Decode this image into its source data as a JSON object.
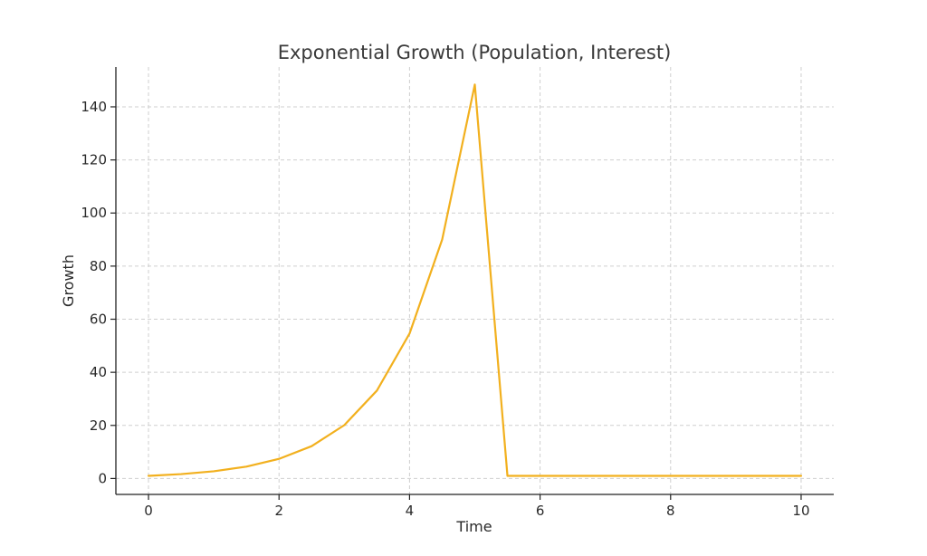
{
  "chart_data": {
    "type": "line",
    "title": "Exponential Growth (Population, Interest)",
    "xlabel": "Time",
    "ylabel": "Growth",
    "xlim": [
      -0.5,
      10.5
    ],
    "ylim": [
      -6,
      155
    ],
    "xticks": [
      0,
      2,
      4,
      6,
      8,
      10
    ],
    "yticks": [
      0,
      20,
      40,
      60,
      80,
      100,
      120,
      140
    ],
    "grid": true,
    "series": [
      {
        "color": "#f2b01e",
        "x": [
          0,
          0.5,
          1,
          1.5,
          2,
          2.5,
          3,
          3.5,
          4,
          4.5,
          5,
          5.5,
          6,
          6.5,
          7,
          7.5,
          8,
          8.5,
          9,
          9.5,
          10
        ],
        "y": [
          1,
          1.65,
          2.72,
          4.48,
          7.39,
          12.18,
          20.09,
          33.12,
          54.6,
          90.02,
          148.4,
          1,
          1,
          1,
          1,
          1,
          1,
          1,
          1,
          1,
          1
        ]
      }
    ]
  }
}
